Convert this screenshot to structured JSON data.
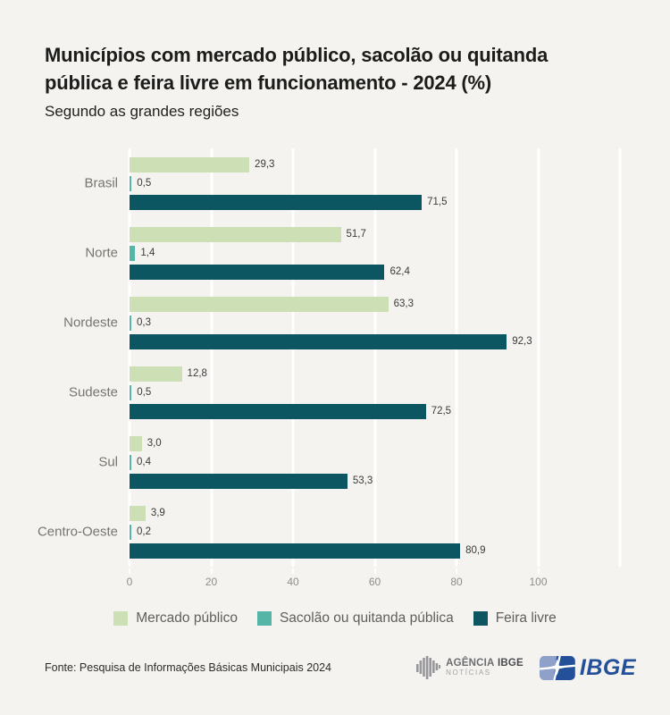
{
  "header": {
    "title_line1": "Municípios com mercado público, sacolão ou quitanda",
    "title_line2": "pública e feira livre em funcionamento - 2024 (%)",
    "subtitle": "Segundo as grandes regiões"
  },
  "chart_data": {
    "type": "bar",
    "orientation": "horizontal",
    "title": "Municípios com mercado público, sacolão ou quitanda pública e feira livre em funcionamento - 2024 (%)",
    "subtitle": "Segundo as grandes regiões",
    "categories": [
      "Brasil",
      "Norte",
      "Nordeste",
      "Sudeste",
      "Sul",
      "Centro-Oeste"
    ],
    "series": [
      {
        "name": "Mercado público",
        "color": "#cde0b5",
        "values": [
          29.3,
          51.7,
          63.3,
          12.8,
          3.0,
          3.9
        ],
        "labels": [
          "29,3",
          "51,7",
          "63,3",
          "12,8",
          "3,0",
          "3,9"
        ]
      },
      {
        "name": "Sacolão ou quitanda pública",
        "color": "#55b6a7",
        "values": [
          0.5,
          1.4,
          0.3,
          0.5,
          0.4,
          0.2
        ],
        "labels": [
          "0,5",
          "1,4",
          "0,3",
          "0,5",
          "0,4",
          "0,2"
        ]
      },
      {
        "name": "Feira livre",
        "color": "#0b5661",
        "values": [
          71.5,
          62.4,
          92.3,
          72.5,
          53.3,
          80.9
        ],
        "labels": [
          "71,5",
          "62,4",
          "92,3",
          "72,5",
          "53,3",
          "80,9"
        ]
      }
    ],
    "xlabel": "",
    "ylabel": "",
    "x_ticks": [
      0,
      20,
      40,
      60,
      80,
      100
    ],
    "xlim": [
      0,
      100
    ],
    "grid": true,
    "gridline_color": "#ffffff",
    "legend_position": "bottom"
  },
  "footer": {
    "source": "Fonte: Pesquisa de Informações Básicas Municipais 2024",
    "agencia_logo": {
      "word1": "AGÊNCIA",
      "word2": "IBGE",
      "line2": "NOTÍCIAS"
    },
    "ibge_logo_text": "IBGE"
  }
}
